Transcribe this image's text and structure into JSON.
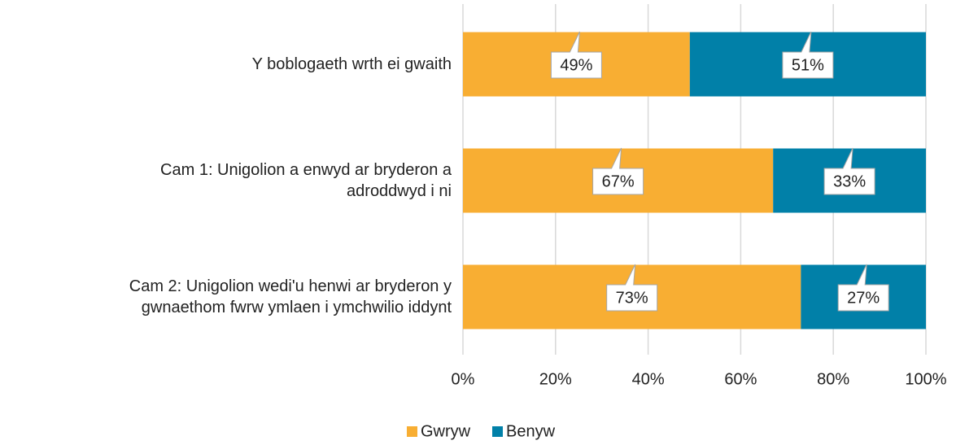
{
  "chart_data": {
    "type": "stacked_bar_horizontal",
    "categories": [
      "Y boblogaeth wrth ei gwaith",
      "Cam 1: Unigolion a enwyd ar bryderon a\nadroddwyd i ni",
      "Cam 2: Unigolion wedi'u henwi ar bryderon y\ngwnaethom fwrw ymlaen i ymchwilio iddynt"
    ],
    "series": [
      {
        "name": "Gwryw",
        "color": "#f8ae33",
        "values": [
          49,
          67,
          73
        ],
        "value_labels": [
          "49%",
          "67%",
          "73%"
        ]
      },
      {
        "name": "Benyw",
        "color": "#0180a8",
        "values": [
          51,
          33,
          27
        ],
        "value_labels": [
          "51%",
          "33%",
          "27%"
        ]
      }
    ],
    "xlim": [
      0,
      100
    ],
    "xticks": [
      {
        "value": 0,
        "label": "0%"
      },
      {
        "value": 20,
        "label": "20%"
      },
      {
        "value": 40,
        "label": "40%"
      },
      {
        "value": 60,
        "label": "60%"
      },
      {
        "value": 80,
        "label": "80%"
      },
      {
        "value": 100,
        "label": "100%"
      }
    ],
    "grid": true,
    "legend": "bottom"
  }
}
